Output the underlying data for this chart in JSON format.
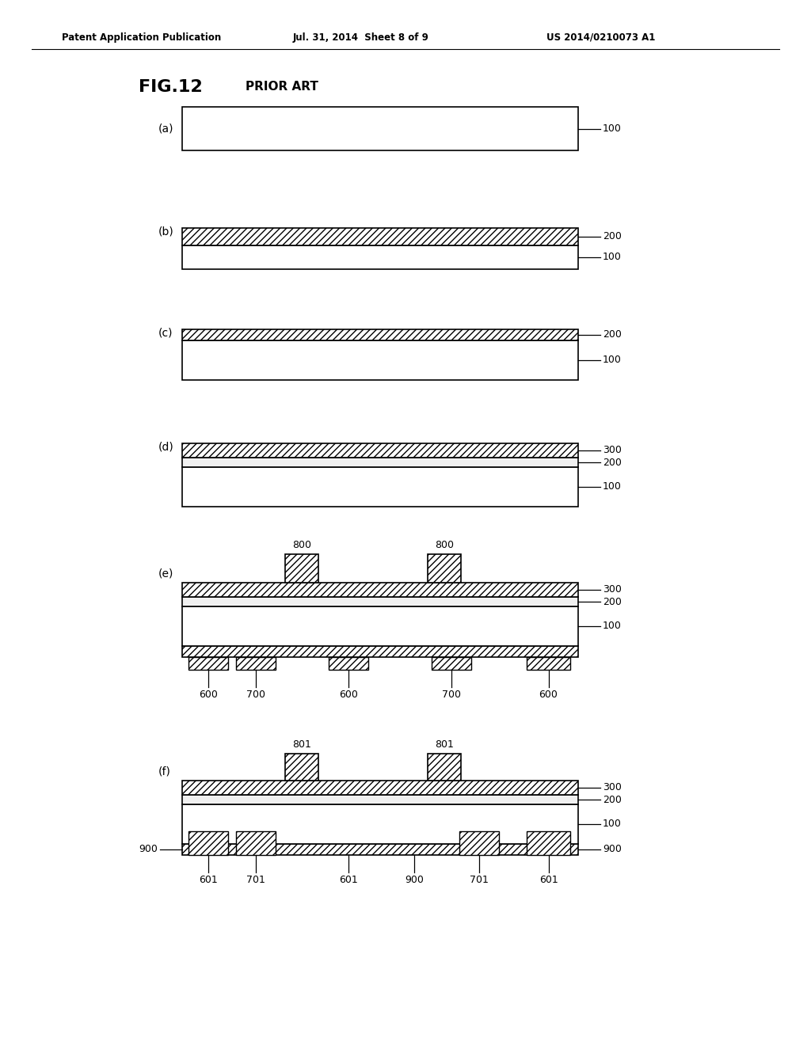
{
  "bg_color": "#ffffff",
  "header_left": "Patent Application Publication",
  "header_mid": "Jul. 31, 2014  Sheet 8 of 9",
  "header_right": "US 2014/0210073 A1",
  "fig_label": "FIG.12",
  "prior_art": "PRIOR ART"
}
